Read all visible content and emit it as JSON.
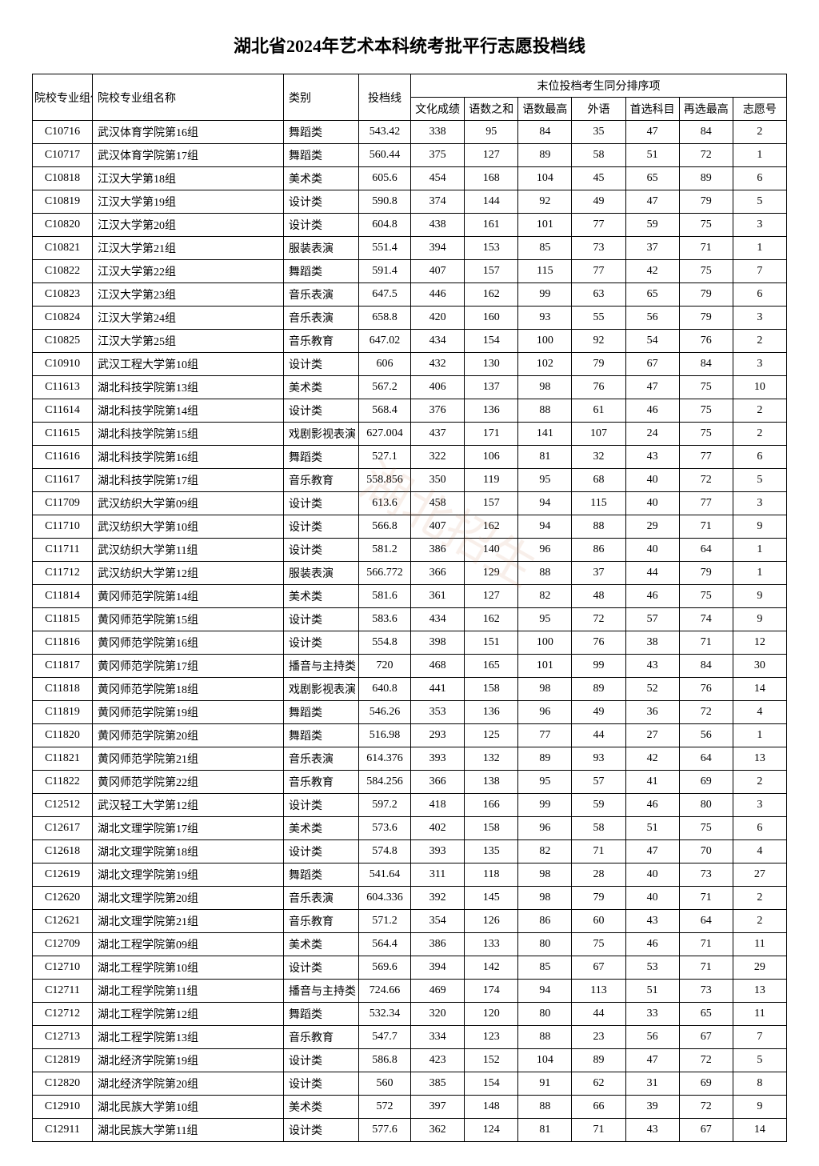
{
  "title": "湖北省2024年艺术本科统考批平行志愿投档线",
  "headers": {
    "code": "院校专业组代号",
    "name": "院校专业组名称",
    "category": "类别",
    "score": "投档线",
    "tiebreak_group": "末位投档考生同分排序项",
    "wh": "文化成绩",
    "ys_sum": "语数之和",
    "ys_max": "语数最高",
    "wy": "外语",
    "sx": "首选科目",
    "zx": "再选最高",
    "zyh": "志愿号"
  },
  "watermark": "湖北招生",
  "styling": {
    "title_fontsize": 22,
    "body_fontsize": 14,
    "border_color": "#000000",
    "background_color": "#ffffff",
    "text_color": "#000000",
    "watermark_color_rgba": "rgba(200,120,80,0.12)"
  },
  "rows": [
    {
      "code": "C10716",
      "name": "武汉体育学院第16组",
      "cat": "舞蹈类",
      "score": "543.42",
      "wh": "338",
      "s1": "95",
      "s2": "84",
      "s3": "35",
      "s4": "47",
      "s5": "84",
      "s6": "2"
    },
    {
      "code": "C10717",
      "name": "武汉体育学院第17组",
      "cat": "舞蹈类",
      "score": "560.44",
      "wh": "375",
      "s1": "127",
      "s2": "89",
      "s3": "58",
      "s4": "51",
      "s5": "72",
      "s6": "1"
    },
    {
      "code": "C10818",
      "name": "江汉大学第18组",
      "cat": "美术类",
      "score": "605.6",
      "wh": "454",
      "s1": "168",
      "s2": "104",
      "s3": "45",
      "s4": "65",
      "s5": "89",
      "s6": "6"
    },
    {
      "code": "C10819",
      "name": "江汉大学第19组",
      "cat": "设计类",
      "score": "590.8",
      "wh": "374",
      "s1": "144",
      "s2": "92",
      "s3": "49",
      "s4": "47",
      "s5": "79",
      "s6": "5"
    },
    {
      "code": "C10820",
      "name": "江汉大学第20组",
      "cat": "设计类",
      "score": "604.8",
      "wh": "438",
      "s1": "161",
      "s2": "101",
      "s3": "77",
      "s4": "59",
      "s5": "75",
      "s6": "3"
    },
    {
      "code": "C10821",
      "name": "江汉大学第21组",
      "cat": "服装表演",
      "score": "551.4",
      "wh": "394",
      "s1": "153",
      "s2": "85",
      "s3": "73",
      "s4": "37",
      "s5": "71",
      "s6": "1"
    },
    {
      "code": "C10822",
      "name": "江汉大学第22组",
      "cat": "舞蹈类",
      "score": "591.4",
      "wh": "407",
      "s1": "157",
      "s2": "115",
      "s3": "77",
      "s4": "42",
      "s5": "75",
      "s6": "7"
    },
    {
      "code": "C10823",
      "name": "江汉大学第23组",
      "cat": "音乐表演",
      "score": "647.5",
      "wh": "446",
      "s1": "162",
      "s2": "99",
      "s3": "63",
      "s4": "65",
      "s5": "79",
      "s6": "6"
    },
    {
      "code": "C10824",
      "name": "江汉大学第24组",
      "cat": "音乐表演",
      "score": "658.8",
      "wh": "420",
      "s1": "160",
      "s2": "93",
      "s3": "55",
      "s4": "56",
      "s5": "79",
      "s6": "3"
    },
    {
      "code": "C10825",
      "name": "江汉大学第25组",
      "cat": "音乐教育",
      "score": "647.02",
      "wh": "434",
      "s1": "154",
      "s2": "100",
      "s3": "92",
      "s4": "54",
      "s5": "76",
      "s6": "2"
    },
    {
      "code": "C10910",
      "name": "武汉工程大学第10组",
      "cat": "设计类",
      "score": "606",
      "wh": "432",
      "s1": "130",
      "s2": "102",
      "s3": "79",
      "s4": "67",
      "s5": "84",
      "s6": "3"
    },
    {
      "code": "C11613",
      "name": "湖北科技学院第13组",
      "cat": "美术类",
      "score": "567.2",
      "wh": "406",
      "s1": "137",
      "s2": "98",
      "s3": "76",
      "s4": "47",
      "s5": "75",
      "s6": "10"
    },
    {
      "code": "C11614",
      "name": "湖北科技学院第14组",
      "cat": "设计类",
      "score": "568.4",
      "wh": "376",
      "s1": "136",
      "s2": "88",
      "s3": "61",
      "s4": "46",
      "s5": "75",
      "s6": "2"
    },
    {
      "code": "C11615",
      "name": "湖北科技学院第15组",
      "cat": "戏剧影视表演",
      "score": "627.004",
      "wh": "437",
      "s1": "171",
      "s2": "141",
      "s3": "107",
      "s4": "24",
      "s5": "75",
      "s6": "2"
    },
    {
      "code": "C11616",
      "name": "湖北科技学院第16组",
      "cat": "舞蹈类",
      "score": "527.1",
      "wh": "322",
      "s1": "106",
      "s2": "81",
      "s3": "32",
      "s4": "43",
      "s5": "77",
      "s6": "6"
    },
    {
      "code": "C11617",
      "name": "湖北科技学院第17组",
      "cat": "音乐教育",
      "score": "558.856",
      "wh": "350",
      "s1": "119",
      "s2": "95",
      "s3": "68",
      "s4": "40",
      "s5": "72",
      "s6": "5"
    },
    {
      "code": "C11709",
      "name": "武汉纺织大学第09组",
      "cat": "设计类",
      "score": "613.6",
      "wh": "458",
      "s1": "157",
      "s2": "94",
      "s3": "115",
      "s4": "40",
      "s5": "77",
      "s6": "3"
    },
    {
      "code": "C11710",
      "name": "武汉纺织大学第10组",
      "cat": "设计类",
      "score": "566.8",
      "wh": "407",
      "s1": "162",
      "s2": "94",
      "s3": "88",
      "s4": "29",
      "s5": "71",
      "s6": "9"
    },
    {
      "code": "C11711",
      "name": "武汉纺织大学第11组",
      "cat": "设计类",
      "score": "581.2",
      "wh": "386",
      "s1": "140",
      "s2": "96",
      "s3": "86",
      "s4": "40",
      "s5": "64",
      "s6": "1"
    },
    {
      "code": "C11712",
      "name": "武汉纺织大学第12组",
      "cat": "服装表演",
      "score": "566.772",
      "wh": "366",
      "s1": "129",
      "s2": "88",
      "s3": "37",
      "s4": "44",
      "s5": "79",
      "s6": "1"
    },
    {
      "code": "C11814",
      "name": "黄冈师范学院第14组",
      "cat": "美术类",
      "score": "581.6",
      "wh": "361",
      "s1": "127",
      "s2": "82",
      "s3": "48",
      "s4": "46",
      "s5": "75",
      "s6": "9"
    },
    {
      "code": "C11815",
      "name": "黄冈师范学院第15组",
      "cat": "设计类",
      "score": "583.6",
      "wh": "434",
      "s1": "162",
      "s2": "95",
      "s3": "72",
      "s4": "57",
      "s5": "74",
      "s6": "9"
    },
    {
      "code": "C11816",
      "name": "黄冈师范学院第16组",
      "cat": "设计类",
      "score": "554.8",
      "wh": "398",
      "s1": "151",
      "s2": "100",
      "s3": "76",
      "s4": "38",
      "s5": "71",
      "s6": "12"
    },
    {
      "code": "C11817",
      "name": "黄冈师范学院第17组",
      "cat": "播音与主持类",
      "score": "720",
      "wh": "468",
      "s1": "165",
      "s2": "101",
      "s3": "99",
      "s4": "43",
      "s5": "84",
      "s6": "30"
    },
    {
      "code": "C11818",
      "name": "黄冈师范学院第18组",
      "cat": "戏剧影视表演",
      "score": "640.8",
      "wh": "441",
      "s1": "158",
      "s2": "98",
      "s3": "89",
      "s4": "52",
      "s5": "76",
      "s6": "14"
    },
    {
      "code": "C11819",
      "name": "黄冈师范学院第19组",
      "cat": "舞蹈类",
      "score": "546.26",
      "wh": "353",
      "s1": "136",
      "s2": "96",
      "s3": "49",
      "s4": "36",
      "s5": "72",
      "s6": "4"
    },
    {
      "code": "C11820",
      "name": "黄冈师范学院第20组",
      "cat": "舞蹈类",
      "score": "516.98",
      "wh": "293",
      "s1": "125",
      "s2": "77",
      "s3": "44",
      "s4": "27",
      "s5": "56",
      "s6": "1"
    },
    {
      "code": "C11821",
      "name": "黄冈师范学院第21组",
      "cat": "音乐表演",
      "score": "614.376",
      "wh": "393",
      "s1": "132",
      "s2": "89",
      "s3": "93",
      "s4": "42",
      "s5": "64",
      "s6": "13"
    },
    {
      "code": "C11822",
      "name": "黄冈师范学院第22组",
      "cat": "音乐教育",
      "score": "584.256",
      "wh": "366",
      "s1": "138",
      "s2": "95",
      "s3": "57",
      "s4": "41",
      "s5": "69",
      "s6": "2"
    },
    {
      "code": "C12512",
      "name": "武汉轻工大学第12组",
      "cat": "设计类",
      "score": "597.2",
      "wh": "418",
      "s1": "166",
      "s2": "99",
      "s3": "59",
      "s4": "46",
      "s5": "80",
      "s6": "3"
    },
    {
      "code": "C12617",
      "name": "湖北文理学院第17组",
      "cat": "美术类",
      "score": "573.6",
      "wh": "402",
      "s1": "158",
      "s2": "96",
      "s3": "58",
      "s4": "51",
      "s5": "75",
      "s6": "6"
    },
    {
      "code": "C12618",
      "name": "湖北文理学院第18组",
      "cat": "设计类",
      "score": "574.8",
      "wh": "393",
      "s1": "135",
      "s2": "82",
      "s3": "71",
      "s4": "47",
      "s5": "70",
      "s6": "4"
    },
    {
      "code": "C12619",
      "name": "湖北文理学院第19组",
      "cat": "舞蹈类",
      "score": "541.64",
      "wh": "311",
      "s1": "118",
      "s2": "98",
      "s3": "28",
      "s4": "40",
      "s5": "73",
      "s6": "27"
    },
    {
      "code": "C12620",
      "name": "湖北文理学院第20组",
      "cat": "音乐表演",
      "score": "604.336",
      "wh": "392",
      "s1": "145",
      "s2": "98",
      "s3": "79",
      "s4": "40",
      "s5": "71",
      "s6": "2"
    },
    {
      "code": "C12621",
      "name": "湖北文理学院第21组",
      "cat": "音乐教育",
      "score": "571.2",
      "wh": "354",
      "s1": "126",
      "s2": "86",
      "s3": "60",
      "s4": "43",
      "s5": "64",
      "s6": "2"
    },
    {
      "code": "C12709",
      "name": "湖北工程学院第09组",
      "cat": "美术类",
      "score": "564.4",
      "wh": "386",
      "s1": "133",
      "s2": "80",
      "s3": "75",
      "s4": "46",
      "s5": "71",
      "s6": "11"
    },
    {
      "code": "C12710",
      "name": "湖北工程学院第10组",
      "cat": "设计类",
      "score": "569.6",
      "wh": "394",
      "s1": "142",
      "s2": "85",
      "s3": "67",
      "s4": "53",
      "s5": "71",
      "s6": "29"
    },
    {
      "code": "C12711",
      "name": "湖北工程学院第11组",
      "cat": "播音与主持类",
      "score": "724.66",
      "wh": "469",
      "s1": "174",
      "s2": "94",
      "s3": "113",
      "s4": "51",
      "s5": "73",
      "s6": "13"
    },
    {
      "code": "C12712",
      "name": "湖北工程学院第12组",
      "cat": "舞蹈类",
      "score": "532.34",
      "wh": "320",
      "s1": "120",
      "s2": "80",
      "s3": "44",
      "s4": "33",
      "s5": "65",
      "s6": "11"
    },
    {
      "code": "C12713",
      "name": "湖北工程学院第13组",
      "cat": "音乐教育",
      "score": "547.7",
      "wh": "334",
      "s1": "123",
      "s2": "88",
      "s3": "23",
      "s4": "56",
      "s5": "67",
      "s6": "7"
    },
    {
      "code": "C12819",
      "name": "湖北经济学院第19组",
      "cat": "设计类",
      "score": "586.8",
      "wh": "423",
      "s1": "152",
      "s2": "104",
      "s3": "89",
      "s4": "47",
      "s5": "72",
      "s6": "5"
    },
    {
      "code": "C12820",
      "name": "湖北经济学院第20组",
      "cat": "设计类",
      "score": "560",
      "wh": "385",
      "s1": "154",
      "s2": "91",
      "s3": "62",
      "s4": "31",
      "s5": "69",
      "s6": "8"
    },
    {
      "code": "C12910",
      "name": "湖北民族大学第10组",
      "cat": "美术类",
      "score": "572",
      "wh": "397",
      "s1": "148",
      "s2": "88",
      "s3": "66",
      "s4": "39",
      "s5": "72",
      "s6": "9"
    },
    {
      "code": "C12911",
      "name": "湖北民族大学第11组",
      "cat": "设计类",
      "score": "577.6",
      "wh": "362",
      "s1": "124",
      "s2": "81",
      "s3": "71",
      "s4": "43",
      "s5": "67",
      "s6": "14"
    }
  ]
}
